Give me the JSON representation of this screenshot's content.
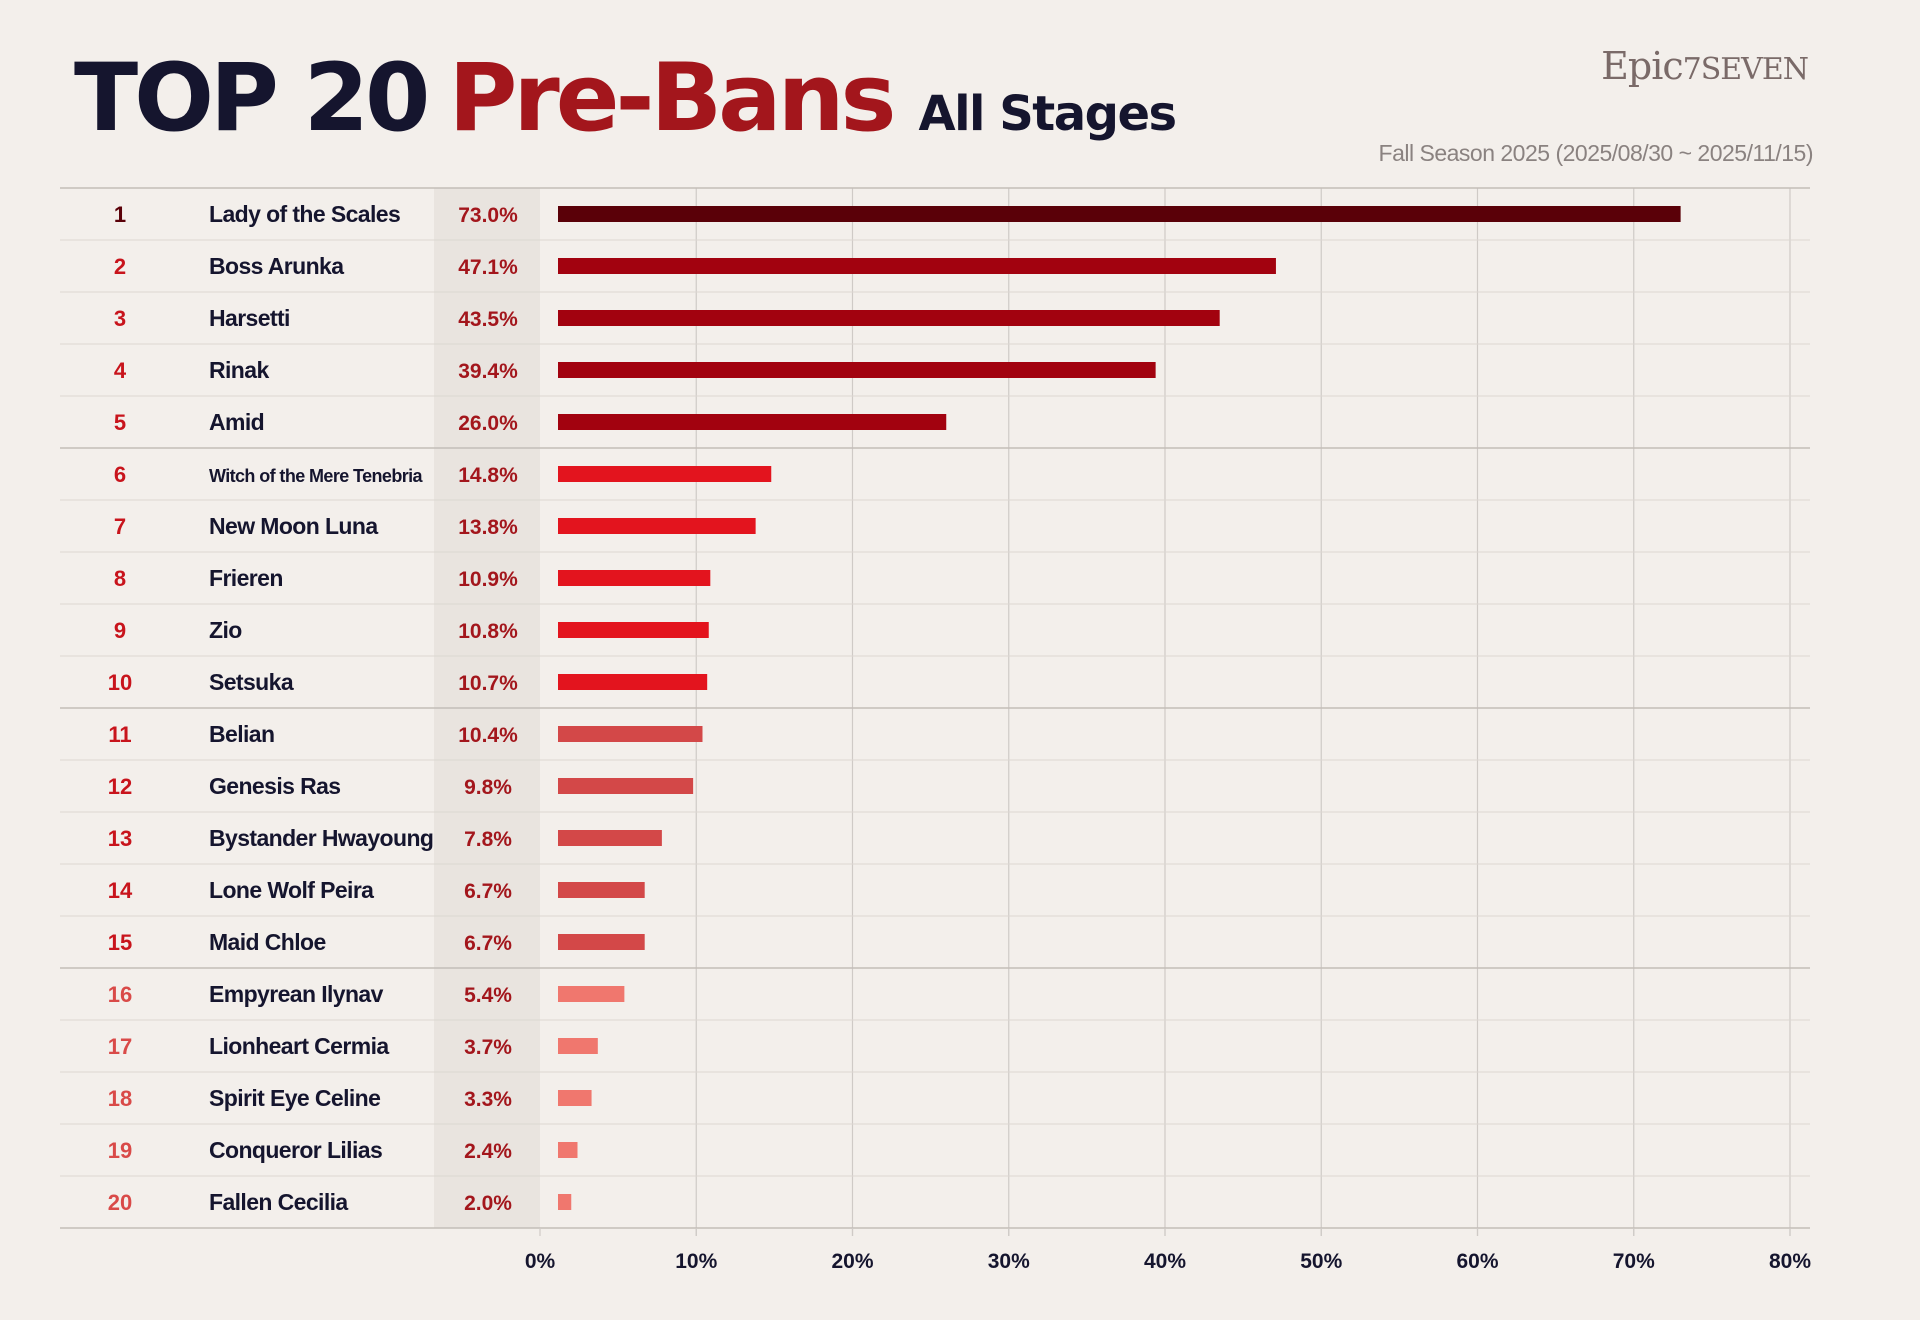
{
  "header": {
    "title_main": "TOP 20",
    "title_accent": "Pre-Bans",
    "title_sub": "All Stages",
    "logo_text": "Epic",
    "logo_seven": "7SEVEN",
    "season": "Fall Season 2025 (2025/08/30 ~ 2025/11/15)"
  },
  "colors": {
    "background": "#f3efeb",
    "title_dark": "#15152e",
    "title_red": "#a3161c",
    "tier_colors": [
      "#5a0008",
      "#a2020f",
      "#e3141e",
      "#d34848",
      "#f0776e"
    ]
  },
  "chart_data": {
    "type": "bar",
    "orientation": "horizontal",
    "title": "TOP 20 Pre-Bans All Stages",
    "subtitle": "Fall Season 2025 (2025/08/30 ~ 2025/11/15)",
    "xlim": [
      0,
      80
    ],
    "x_ticks": [
      "0%",
      "10%",
      "20%",
      "30%",
      "40%",
      "50%",
      "60%",
      "70%",
      "80%"
    ],
    "grid": true,
    "ranks": [
      "1",
      "2",
      "3",
      "4",
      "5",
      "6",
      "7",
      "8",
      "9",
      "10",
      "11",
      "12",
      "13",
      "14",
      "15",
      "16",
      "17",
      "18",
      "19",
      "20"
    ],
    "categories": [
      "Lady of the Scales",
      "Boss Arunka",
      "Harsetti",
      "Rinak",
      "Amid",
      "Witch of the Mere Tenebria",
      "New Moon Luna",
      "Frieren",
      "Zio",
      "Setsuka",
      "Belian",
      "Genesis Ras",
      "Bystander Hwayoung",
      "Lone Wolf Peira",
      "Maid Chloe",
      "Empyrean Ilynav",
      "Lionheart Cermia",
      "Spirit Eye Celine",
      "Conqueror Lilias",
      "Fallen Cecilia"
    ],
    "values": [
      73.0,
      47.1,
      43.5,
      39.4,
      26.0,
      14.8,
      13.8,
      10.9,
      10.8,
      10.7,
      10.4,
      9.8,
      7.8,
      6.7,
      6.7,
      5.4,
      3.7,
      3.3,
      2.4,
      2.0
    ],
    "value_labels": [
      "73.0%",
      "47.1%",
      "43.5%",
      "39.4%",
      "26.0%",
      "14.8%",
      "13.8%",
      "10.9%",
      "10.8%",
      "10.7%",
      "10.4%",
      "9.8%",
      "7.8%",
      "6.7%",
      "6.7%",
      "5.4%",
      "3.7%",
      "3.3%",
      "2.4%",
      "2.0%"
    ],
    "tiers": [
      0,
      1,
      1,
      1,
      1,
      2,
      2,
      2,
      2,
      2,
      3,
      3,
      3,
      3,
      3,
      4,
      4,
      4,
      4,
      4
    ]
  }
}
